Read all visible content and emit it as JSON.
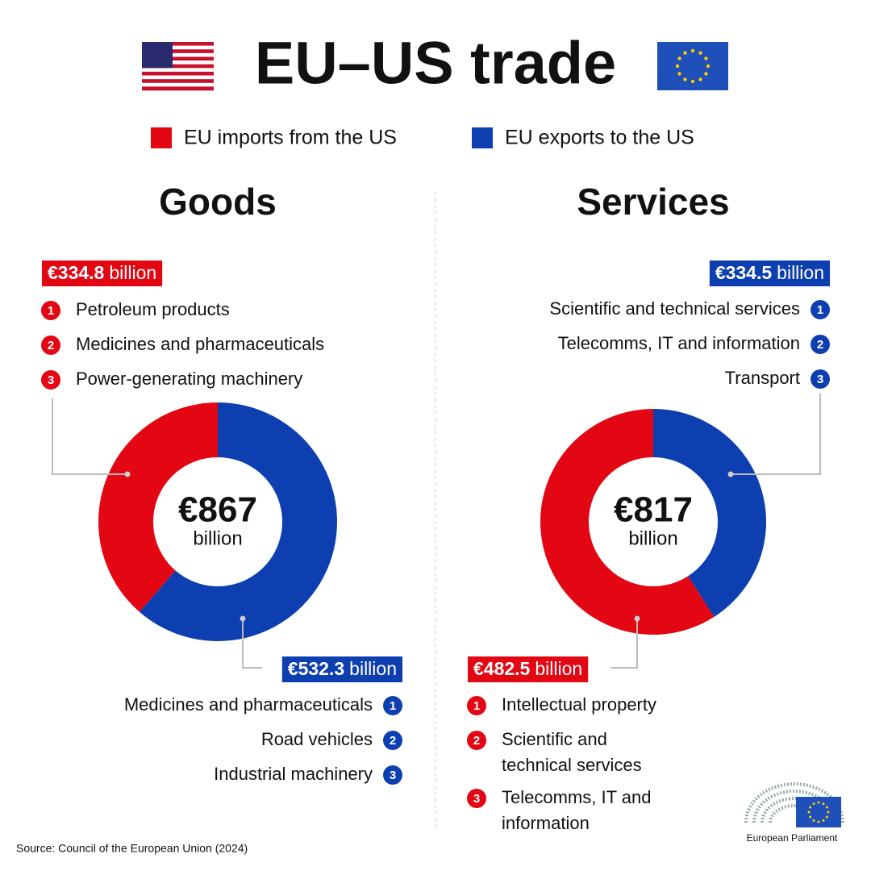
{
  "title": "EU–US trade",
  "legend": {
    "categories": [
      "EU imports from the US",
      "EU exports to the US"
    ],
    "colors": [
      "#e30613",
      "#0d3fb0"
    ]
  },
  "chart_data": [
    {
      "type": "donut",
      "title": "Goods",
      "values": [
        334.8,
        532.3
      ],
      "value_labels": [
        "€334.8",
        "€532.3"
      ],
      "unit": "billion",
      "total": 867,
      "total_label": "€867",
      "items": [
        [
          {
            "rank": 1,
            "lines": [
              "Petroleum products"
            ]
          },
          {
            "rank": 2,
            "lines": [
              "Medicines and pharmaceuticals"
            ]
          },
          {
            "rank": 3,
            "lines": [
              "Power-generating machinery"
            ]
          }
        ],
        [
          {
            "rank": 1,
            "lines": [
              "Medicines and pharmaceuticals"
            ]
          },
          {
            "rank": 2,
            "lines": [
              "Road vehicles"
            ]
          },
          {
            "rank": 3,
            "lines": [
              "Industrial machinery"
            ]
          }
        ]
      ]
    },
    {
      "type": "donut",
      "title": "Services",
      "values": [
        482.5,
        334.5
      ],
      "value_labels": [
        "€482.5",
        "€334.5"
      ],
      "unit": "billion",
      "total": 817,
      "total_label": "€817",
      "items": [
        [
          {
            "rank": 1,
            "lines": [
              "Intellectual property"
            ]
          },
          {
            "rank": 2,
            "lines": [
              "Scientific and",
              "technical services"
            ]
          },
          {
            "rank": 3,
            "lines": [
              "Telecomms, IT and",
              "information"
            ]
          }
        ],
        [
          {
            "rank": 1,
            "lines": [
              "Scientific and technical services"
            ]
          },
          {
            "rank": 2,
            "lines": [
              "Telecomms, IT and information"
            ]
          },
          {
            "rank": 3,
            "lines": [
              "Transport"
            ]
          }
        ]
      ]
    }
  ],
  "source": "Source: Council of the European Union (2024)",
  "logo": "European Parliament"
}
